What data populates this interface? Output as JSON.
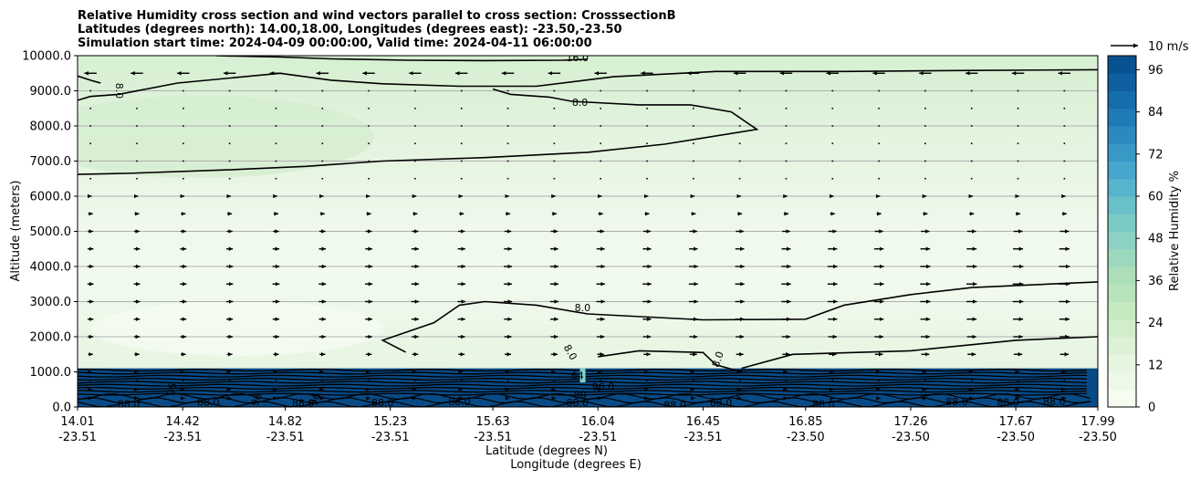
{
  "chart_data": {
    "type": "heatmap",
    "title_lines": [
      "Relative Humidity cross section and wind vectors parallel to cross section: CrosssectionB",
      "Latitudes (degrees north): 14.00,18.00, Longitudes (degrees east): -23.50,-23.50",
      "Simulation start time: 2024-04-09 00:00:00, Valid time: 2024-04-11 06:00:00"
    ],
    "ylabel": "Altitude (meters)",
    "xlabel_lines": [
      "Latitude (degrees N)",
      "Longitude (degrees E)"
    ],
    "ylim": [
      0,
      10000
    ],
    "y_ticks": [
      "0.0",
      "1000.0",
      "2000.0",
      "3000.0",
      "4000.0",
      "5000.0",
      "6000.0",
      "7000.0",
      "8000.0",
      "9000.0",
      "10000.0"
    ],
    "y_tick_values": [
      0,
      1000,
      2000,
      3000,
      4000,
      5000,
      6000,
      7000,
      8000,
      9000,
      10000
    ],
    "x_tick_lat": [
      "14.01",
      "14.42",
      "14.82",
      "15.23",
      "15.63",
      "16.04",
      "16.45",
      "16.85",
      "17.26",
      "17.67",
      "17.99"
    ],
    "x_tick_lon": [
      "-23.51",
      "-23.51",
      "-23.51",
      "-23.51",
      "-23.51",
      "-23.51",
      "-23.51",
      "-23.50",
      "-23.50",
      "-23.50",
      "-23.50"
    ],
    "x_tick_values": [
      14.01,
      14.42,
      14.82,
      15.23,
      15.63,
      16.04,
      16.45,
      16.85,
      17.26,
      17.67,
      17.99
    ],
    "grid": "horizontal",
    "colorbar": {
      "label": "Relative Humidity %",
      "ticks": [
        "0",
        "12",
        "24",
        "36",
        "48",
        "60",
        "72",
        "84",
        "96"
      ],
      "tick_values": [
        0,
        12,
        24,
        36,
        48,
        60,
        72,
        84,
        96
      ],
      "range": [
        0,
        100
      ],
      "colormap": "GnBu"
    },
    "quiver_key": {
      "label": "10 m/s",
      "value": 10
    },
    "contour_labels": [
      {
        "text": "16.0",
        "x": 15.96,
        "y": 9920
      },
      {
        "text": "8.0",
        "x": 14.17,
        "y": 9000,
        "rotate": 90
      },
      {
        "text": "8.0",
        "x": 15.97,
        "y": 8650
      },
      {
        "text": "8.0",
        "x": 15.98,
        "y": 2800
      },
      {
        "text": "8.0",
        "x": 15.93,
        "y": 1550,
        "rotate": 60
      },
      {
        "text": "8.0",
        "x": 16.51,
        "y": 1350,
        "rotate": -70
      },
      {
        "text": "88.0",
        "x": 14.21,
        "y": 60
      },
      {
        "text": "88.0",
        "x": 14.52,
        "y": 120
      },
      {
        "text": "88.0",
        "x": 14.89,
        "y": 90
      },
      {
        "text": "88.0",
        "x": 15.2,
        "y": 110
      },
      {
        "text": "88.0",
        "x": 15.5,
        "y": 130
      },
      {
        "text": "88.0",
        "x": 15.96,
        "y": 100
      },
      {
        "text": "88.0",
        "x": 16.34,
        "y": 40
      },
      {
        "text": "88.0",
        "x": 16.52,
        "y": 110
      },
      {
        "text": "88.0",
        "x": 16.92,
        "y": 70
      },
      {
        "text": "88.0",
        "x": 17.44,
        "y": 130
      },
      {
        "text": "88.0",
        "x": 17.64,
        "y": 120
      },
      {
        "text": "88.0",
        "x": 17.82,
        "y": 130
      },
      {
        "text": "96",
        "x": 14.38,
        "y": 500,
        "rotate": -80
      },
      {
        "text": "96",
        "x": 14.71,
        "y": 200,
        "rotate": -70
      },
      {
        "text": "96",
        "x": 14.94,
        "y": 210,
        "rotate": -70
      },
      {
        "text": "96.0",
        "x": 16.06,
        "y": 560
      },
      {
        "text": "80",
        "x": 15.97,
        "y": 330
      },
      {
        "text": "64",
        "x": 15.96,
        "y": 870
      }
    ],
    "contours": [
      {
        "level": 16,
        "points": [
          [
            14.55,
            10000
          ],
          [
            14.8,
            9960
          ],
          [
            15.0,
            9910
          ],
          [
            15.3,
            9870
          ],
          [
            15.6,
            9860
          ],
          [
            15.9,
            9870
          ],
          [
            16.0,
            9900
          ]
        ]
      },
      {
        "level": 8,
        "points": [
          [
            14.01,
            9420
          ],
          [
            14.07,
            9280
          ],
          [
            14.1,
            9220
          ]
        ]
      },
      {
        "level": 8,
        "points": [
          [
            14.01,
            8730
          ],
          [
            14.06,
            8840
          ],
          [
            14.17,
            8900
          ],
          [
            14.4,
            9220
          ],
          [
            14.8,
            9500
          ],
          [
            15.0,
            9300
          ],
          [
            15.2,
            9200
          ],
          [
            15.5,
            9130
          ],
          [
            15.8,
            9130
          ],
          [
            16.1,
            9400
          ],
          [
            16.5,
            9550
          ],
          [
            17.0,
            9550
          ],
          [
            17.5,
            9580
          ],
          [
            17.99,
            9600
          ]
        ]
      },
      {
        "level": 8,
        "points": [
          [
            15.63,
            9050
          ],
          [
            15.7,
            8900
          ],
          [
            15.85,
            8820
          ],
          [
            15.94,
            8700
          ],
          [
            16.2,
            8600
          ],
          [
            16.4,
            8600
          ],
          [
            16.56,
            8400
          ],
          [
            16.66,
            7900
          ],
          [
            16.3,
            7480
          ],
          [
            16.0,
            7250
          ],
          [
            15.6,
            7100
          ],
          [
            15.2,
            7000
          ],
          [
            14.9,
            6850
          ],
          [
            14.6,
            6750
          ],
          [
            14.2,
            6650
          ],
          [
            14.01,
            6620
          ]
        ]
      },
      {
        "level": 8,
        "points": [
          [
            15.29,
            1560
          ],
          [
            15.2,
            1900
          ],
          [
            15.4,
            2400
          ],
          [
            15.5,
            2900
          ],
          [
            15.6,
            3000
          ],
          [
            15.8,
            2900
          ],
          [
            16.0,
            2650
          ],
          [
            16.45,
            2480
          ],
          [
            16.85,
            2500
          ],
          [
            17.0,
            2900
          ],
          [
            17.26,
            3200
          ],
          [
            17.5,
            3400
          ],
          [
            17.99,
            3560
          ]
        ]
      },
      {
        "level": 8,
        "points": [
          [
            16.04,
            1430
          ],
          [
            16.2,
            1600
          ],
          [
            16.45,
            1550
          ],
          [
            16.5,
            1200
          ],
          [
            16.6,
            1000
          ]
        ]
      },
      {
        "level": 8,
        "points": [
          [
            16.6,
            1100
          ],
          [
            16.8,
            1500
          ],
          [
            17.26,
            1600
          ],
          [
            17.67,
            1900
          ],
          [
            17.99,
            2000
          ]
        ]
      }
    ],
    "surface_band_top_m": 1100,
    "wind_vectors": {
      "rows_m": [
        250,
        500,
        750,
        1000,
        1500,
        2000,
        2500,
        3000,
        3500,
        4000,
        4500,
        5000,
        5500,
        6000,
        6500,
        7000,
        7500,
        8000,
        8500,
        9000,
        9500
      ],
      "speed_at_row_m_s": [
        1.0,
        0.8,
        0.6,
        0.8,
        3.0,
        3.4,
        3.6,
        3.8,
        3.8,
        3.8,
        3.6,
        3.2,
        1.6,
        0.8,
        0.6,
        0.5,
        0.4,
        0.4,
        0.5,
        0.6,
        -4.2
      ]
    }
  }
}
